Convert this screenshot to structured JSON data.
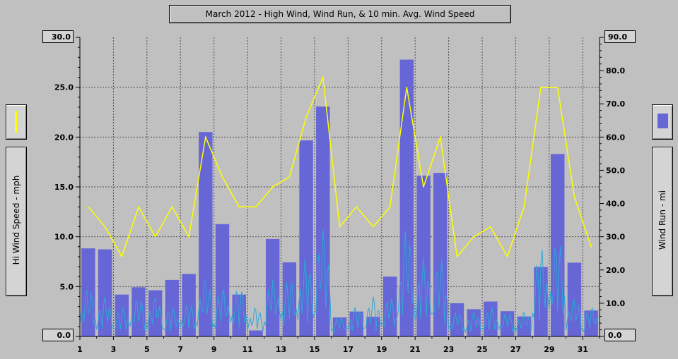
{
  "chart_data": {
    "type": "bar",
    "title": "March 2012 - High Wind, Wind Run, & 10 min. Avg. Wind Speed",
    "ylabel_left": "Hi Wind Speed - mph",
    "ylabel_right": "Wind Run - mi",
    "y_left_lim": [
      0,
      30
    ],
    "y_right_lim": [
      0,
      90
    ],
    "y_left_ticks": [
      "0.0",
      "5.0",
      "10.0",
      "15.0",
      "20.0",
      "25.0",
      "30.0"
    ],
    "y_right_ticks": [
      "0.0",
      "10.0",
      "20.0",
      "30.0",
      "40.0",
      "50.0",
      "60.0",
      "70.0",
      "80.0",
      "90.0"
    ],
    "x_ticks": [
      "1",
      "3",
      "5",
      "7",
      "9",
      "11",
      "13",
      "15",
      "17",
      "19",
      "21",
      "23",
      "25",
      "27",
      "29",
      "31"
    ],
    "days": [
      1,
      2,
      3,
      4,
      5,
      6,
      7,
      8,
      9,
      10,
      11,
      12,
      13,
      14,
      15,
      16,
      17,
      18,
      19,
      20,
      21,
      22,
      23,
      24,
      25,
      26,
      27,
      28,
      29,
      30,
      31
    ],
    "wind_run_mi": [
      26.5,
      26.2,
      12.6,
      14.8,
      13.9,
      17.0,
      18.8,
      61.5,
      33.8,
      12.6,
      1.8,
      29.3,
      22.3,
      59.0,
      69.2,
      5.7,
      7.5,
      5.9,
      18.0,
      83.3,
      48.4,
      49.2,
      10.0,
      8.2,
      10.5,
      7.6,
      6.0,
      20.9,
      54.9,
      22.2,
      7.8
    ],
    "hi_wind_mph": [
      13.0,
      11.0,
      8.0,
      13.0,
      10.0,
      13.0,
      10.0,
      20.0,
      16.0,
      13.0,
      13.0,
      15.0,
      16.0,
      22.0,
      26.0,
      11.0,
      13.0,
      11.0,
      13.0,
      25.0,
      15.0,
      20.0,
      8.0,
      10.0,
      11.0,
      8.0,
      13.0,
      25.0,
      25.0,
      14.0,
      9.0
    ],
    "avg_peak_mph": [
      5.0,
      4.0,
      3.0,
      4.0,
      4.0,
      3.0,
      3.5,
      6.0,
      5.0,
      5.0,
      3.0,
      6.0,
      6.0,
      8.0,
      11.0,
      2.0,
      3.0,
      4.0,
      4.0,
      11.0,
      8.0,
      8.0,
      2.5,
      2.5,
      3.0,
      2.5,
      2.5,
      9.0,
      10.0,
      4.0,
      3.0
    ],
    "colors": {
      "bar": "#6666d6",
      "line": "#ffff00",
      "avg": "#2fa6d8",
      "grid": "#505050"
    }
  }
}
